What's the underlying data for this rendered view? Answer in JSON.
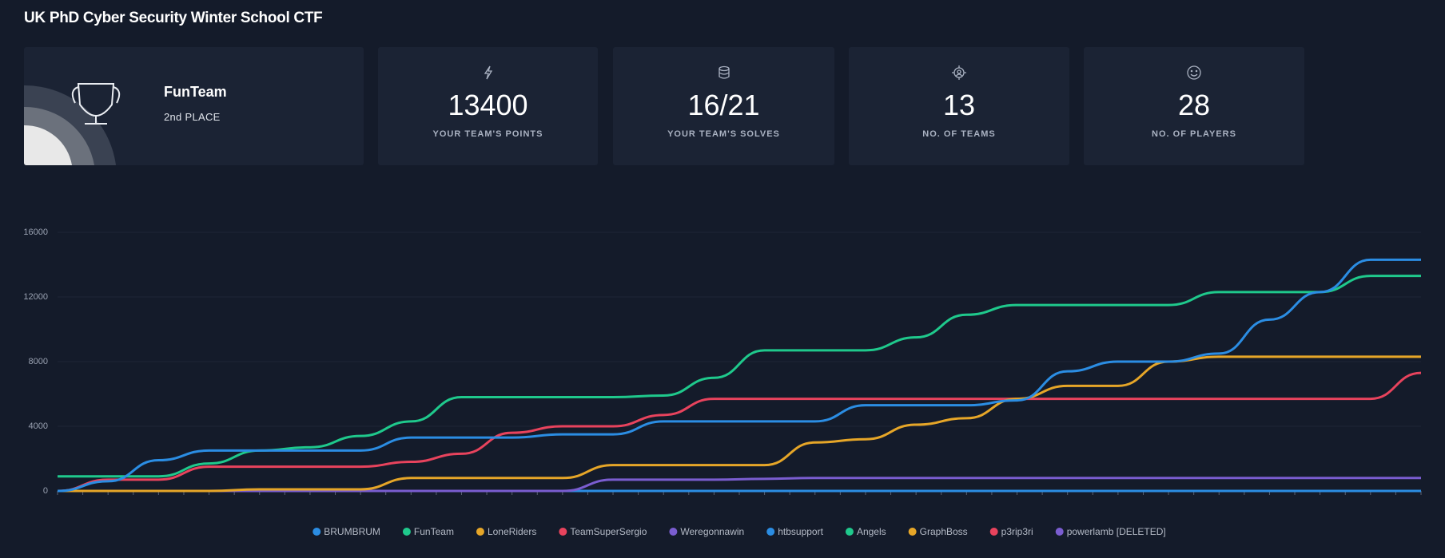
{
  "header": {
    "title": "UK PhD Cyber Security Winter School CTF"
  },
  "team": {
    "name": "FunTeam",
    "place": "2nd PLACE"
  },
  "cards": [
    {
      "value": 13400,
      "label": "YOUR TEAM'S POINTS"
    },
    {
      "value": "16/21",
      "label": "YOUR TEAM'S SOLVES"
    },
    {
      "value": 13,
      "label": "NO. OF TEAMS"
    },
    {
      "value": 28,
      "label": "NO. OF PLAYERS"
    }
  ],
  "chart_data": {
    "type": "line",
    "categories": [
      null,
      null,
      null,
      null,
      null,
      null,
      null,
      null,
      null,
      null,
      null,
      null,
      null,
      null,
      null,
      null,
      null,
      null,
      null,
      null,
      null,
      null,
      null,
      null,
      null,
      null,
      null,
      null
    ],
    "ylim": [
      0,
      16000
    ],
    "yticks": [
      0,
      4000,
      8000,
      12000,
      16000
    ],
    "grid": true,
    "legend": "bottom",
    "series": [
      {
        "name": "BRUMBRUM",
        "color": "#2b8de3",
        "values": [
          0,
          600,
          1900,
          2500,
          2500,
          2500,
          2500,
          3300,
          3300,
          3300,
          3500,
          3500,
          4300,
          4300,
          4300,
          4300,
          5300,
          5300,
          5300,
          5600,
          7400,
          8000,
          8000,
          8500,
          10600,
          12300,
          14300,
          14300
        ]
      },
      {
        "name": "FunTeam",
        "color": "#1fc98c",
        "values": [
          900,
          900,
          900,
          1700,
          2500,
          2700,
          3400,
          4300,
          5800,
          5800,
          5800,
          5800,
          5900,
          7000,
          8700,
          8700,
          8700,
          9500,
          10900,
          11500,
          11500,
          11500,
          11500,
          12300,
          12300,
          12300,
          13300,
          13300
        ]
      },
      {
        "name": "LoneRiders",
        "color": "#e6a628",
        "values": [
          0,
          0,
          0,
          0,
          100,
          100,
          100,
          800,
          800,
          800,
          800,
          1600,
          1600,
          1600,
          1600,
          3000,
          3200,
          4100,
          4500,
          5700,
          6500,
          6500,
          8000,
          8300,
          8300,
          8300,
          8300,
          8300
        ]
      },
      {
        "name": "TeamSuperSergio",
        "color": "#e8435d",
        "values": [
          0,
          700,
          700,
          1500,
          1500,
          1500,
          1500,
          1800,
          2300,
          3600,
          4000,
          4000,
          4700,
          5700,
          5700,
          5700,
          5700,
          5700,
          5700,
          5700,
          5700,
          5700,
          5700,
          5700,
          5700,
          5700,
          5700,
          7300
        ]
      },
      {
        "name": "Weregonnawin",
        "color": "#7a5dd0",
        "values": [
          0,
          0,
          0,
          0,
          0,
          0,
          0,
          0,
          0,
          0,
          0,
          700,
          700,
          700,
          750,
          800,
          800,
          800,
          800,
          800,
          800,
          800,
          800,
          800,
          800,
          800,
          800,
          800
        ]
      },
      {
        "name": "htbsupport",
        "color": "#2b8de3",
        "values": [
          0,
          0,
          0,
          0,
          0,
          0,
          0,
          0,
          0,
          0,
          0,
          0,
          0,
          0,
          0,
          0,
          0,
          0,
          0,
          0,
          0,
          0,
          0,
          0,
          0,
          0,
          0,
          0
        ]
      },
      {
        "name": "Angels",
        "color": "#1fc98c",
        "values": [
          0,
          0,
          0,
          0,
          0,
          0,
          0,
          0,
          0,
          0,
          0,
          0,
          0,
          0,
          0,
          0,
          0,
          0,
          0,
          0,
          0,
          0,
          0,
          0,
          0,
          0,
          0,
          0
        ]
      },
      {
        "name": "GraphBoss",
        "color": "#e6a628",
        "values": [
          0,
          0,
          0,
          0,
          0,
          0,
          0,
          0,
          0,
          0,
          0,
          0,
          0,
          0,
          0,
          0,
          0,
          0,
          0,
          0,
          0,
          0,
          0,
          0,
          0,
          0,
          0,
          0
        ]
      },
      {
        "name": "p3rip3ri",
        "color": "#e8435d",
        "values": [
          0,
          0,
          0,
          0,
          0,
          0,
          0,
          0,
          0,
          0,
          0,
          0,
          0,
          0,
          0,
          0,
          0,
          0,
          0,
          0,
          0,
          0,
          0,
          0,
          0,
          0,
          0,
          0
        ]
      },
      {
        "name": "powerlamb [DELETED]",
        "color": "#7a5dd0",
        "values": [
          0,
          0,
          0,
          0,
          0,
          0,
          0,
          0,
          0,
          0,
          0,
          0,
          0,
          0,
          0,
          0,
          0,
          0,
          0,
          0,
          0,
          0,
          0,
          0,
          0,
          0,
          0,
          0
        ]
      }
    ]
  }
}
